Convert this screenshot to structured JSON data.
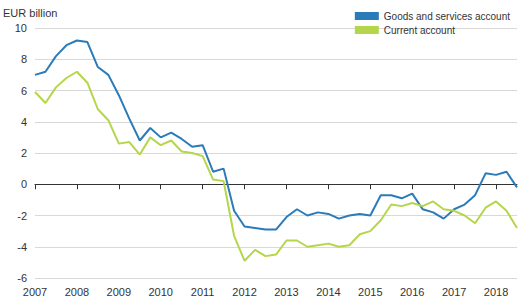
{
  "chart_data": {
    "type": "line",
    "ylabel": "EUR billion",
    "categories": [
      "2007",
      null,
      null,
      null,
      "2008",
      null,
      null,
      null,
      "2009",
      null,
      null,
      null,
      "2010",
      null,
      null,
      null,
      "2011",
      null,
      null,
      null,
      "2012",
      null,
      null,
      null,
      "2013",
      null,
      null,
      null,
      "2014",
      null,
      null,
      null,
      "2015",
      null,
      null,
      null,
      "2016",
      null,
      null,
      null,
      "2017",
      null,
      null,
      null,
      "2018",
      null,
      null
    ],
    "series": [
      {
        "name": "Goods and services account",
        "color": "#2b7bb9",
        "values": [
          7.0,
          7.2,
          8.2,
          8.9,
          9.2,
          9.1,
          7.5,
          7.0,
          5.7,
          4.2,
          2.8,
          3.6,
          3.0,
          3.3,
          2.9,
          2.4,
          2.5,
          0.8,
          1.0,
          -1.7,
          -2.7,
          -2.8,
          -2.9,
          -2.9,
          -2.1,
          -1.6,
          -2.0,
          -1.8,
          -1.9,
          -2.2,
          -2.0,
          -1.9,
          -2.0,
          -0.7,
          -0.7,
          -0.9,
          -0.6,
          -1.6,
          -1.8,
          -2.2,
          -1.6,
          -1.3,
          -0.7,
          0.7,
          0.6,
          0.8,
          -0.2
        ]
      },
      {
        "name": "Current account",
        "color": "#b5d64a",
        "values": [
          5.9,
          5.2,
          6.2,
          6.8,
          7.2,
          6.5,
          4.8,
          4.1,
          2.6,
          2.7,
          1.9,
          3.0,
          2.5,
          2.8,
          2.1,
          2.0,
          1.8,
          0.3,
          0.2,
          -3.3,
          -4.9,
          -4.2,
          -4.6,
          -4.5,
          -3.6,
          -3.6,
          -4.0,
          -3.9,
          -3.8,
          -4.0,
          -3.9,
          -3.2,
          -3.0,
          -2.3,
          -1.3,
          -1.4,
          -1.2,
          -1.4,
          -1.1,
          -1.6,
          -1.7,
          -2.0,
          -2.5,
          -1.5,
          -1.1,
          -1.7,
          -2.8
        ]
      }
    ],
    "ylim": [
      -6,
      10
    ],
    "yticks": [
      -6,
      -4,
      -2,
      0,
      2,
      4,
      6,
      8,
      10
    ],
    "grid": true,
    "legend": "top-right"
  }
}
